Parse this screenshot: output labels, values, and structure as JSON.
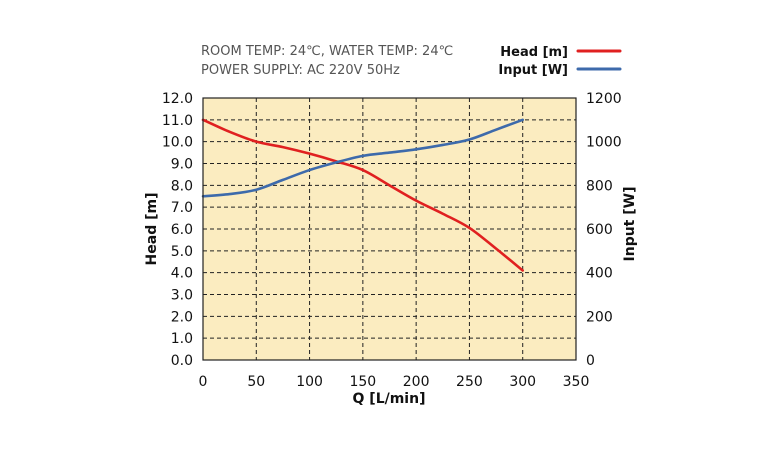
{
  "chart_data": {
    "type": "line",
    "notes": [
      "ROOM TEMP: 24℃, WATER TEMP: 24℃",
      "POWER SUPPLY: AC 220V 50Hz"
    ],
    "xlabel": "Q [L/min]",
    "ylabel": "Head [m]",
    "y2label": "Input [W]",
    "xlim": [
      0,
      350
    ],
    "ylim": [
      0,
      12
    ],
    "y2lim": [
      0,
      1200
    ],
    "xticks": [
      "0",
      "50",
      "100",
      "150",
      "200",
      "250",
      "300",
      "350"
    ],
    "yticks": [
      "0.0",
      "1.0",
      "2.0",
      "3.0",
      "4.0",
      "5.0",
      "6.0",
      "7.0",
      "8.0",
      "9.0",
      "10.0",
      "11.0",
      "12.0"
    ],
    "y2ticks": [
      "0",
      "200",
      "400",
      "600",
      "800",
      "1000",
      "1200"
    ],
    "grid": true,
    "legend_position": "top-right",
    "plot_background": "#fbecc0",
    "series": [
      {
        "name": "Head [m]",
        "axis": "left",
        "color": "#e02020",
        "x": [
          0,
          25,
          50,
          75,
          100,
          125,
          150,
          175,
          200,
          225,
          250,
          275,
          300
        ],
        "y": [
          11.0,
          10.45,
          10.0,
          9.75,
          9.45,
          9.1,
          8.7,
          8.0,
          7.3,
          6.7,
          6.05,
          5.1,
          4.1
        ]
      },
      {
        "name": "Input [W]",
        "axis": "right",
        "color": "#3d6aab",
        "x": [
          0,
          25,
          50,
          75,
          100,
          125,
          150,
          175,
          200,
          225,
          250,
          275,
          300
        ],
        "y": [
          750,
          760,
          780,
          825,
          870,
          905,
          935,
          950,
          965,
          985,
          1010,
          1055,
          1100
        ]
      }
    ]
  }
}
